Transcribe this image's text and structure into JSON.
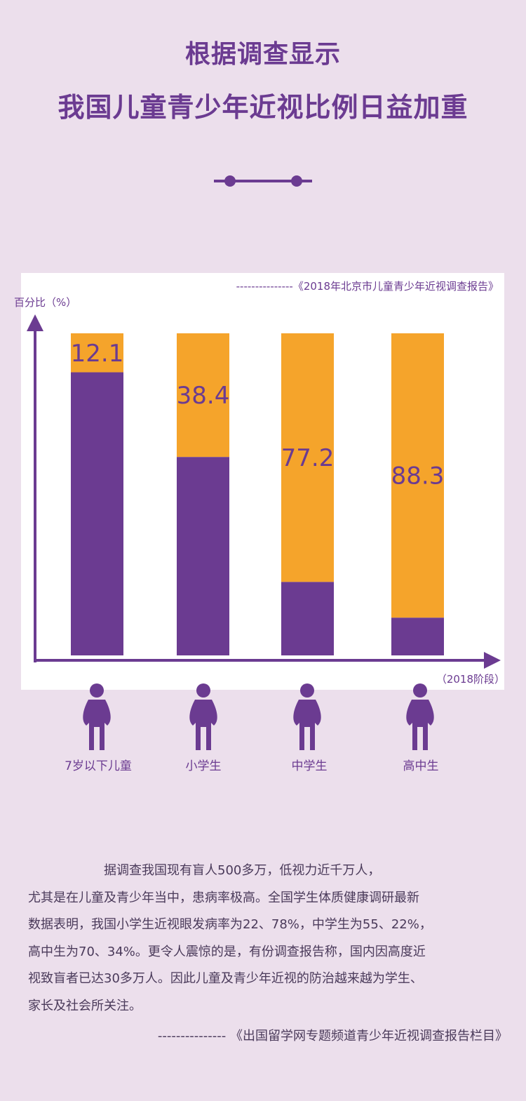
{
  "header": {
    "title_line1": "根据调查显示",
    "title_line2": "我国儿童青少年近视比例日益加重"
  },
  "colors": {
    "background": "#ecdfec",
    "purple": "#6b3b91",
    "orange": "#f5a42b",
    "panel": "#ffffff"
  },
  "chart_data": {
    "type": "bar",
    "stacked": true,
    "source": "---------------《2018年北京市儿童青少年近视调查报告》",
    "ylabel": "百分比（%）",
    "xlabel": "（2018阶段）",
    "ylim": [
      0,
      100
    ],
    "categories": [
      "7岁以下儿童",
      "小学生",
      "中学生",
      "高中生"
    ],
    "values": [
      12.1,
      38.4,
      77.2,
      88.3
    ],
    "value_labels": [
      "12.1",
      "38.4",
      "77.2",
      "88.3"
    ],
    "series": [
      {
        "name": "",
        "color": "#f5a42b",
        "values": [
          12.1,
          38.4,
          77.2,
          88.3
        ]
      },
      {
        "name": "",
        "color": "#6b3b91",
        "values": [
          87.9,
          61.6,
          22.8,
          11.7
        ]
      }
    ],
    "grid": false,
    "legend": "none"
  },
  "icons": {
    "person": "person-icon"
  },
  "body": {
    "line1": "据调查我国现有盲人500多万，低视力近千万人，",
    "line2": "尤其是在儿童及青少年当中，患病率极高。全国学生体质健康调研最新",
    "line3": "数据表明，我国小学生近视眼发病率为22、78%，中学生为55、22%，",
    "line4": "高中生为70、34%。更令人震惊的是，有份调查报告称，国内因高度近",
    "line5": "视致盲者已达30多万人。因此儿童及青少年近视的防治越来越为学生、",
    "line6": "家长及社会所关注。",
    "credit": "---------------  《出国留学网专题频道青少年近视调查报告栏目》"
  }
}
